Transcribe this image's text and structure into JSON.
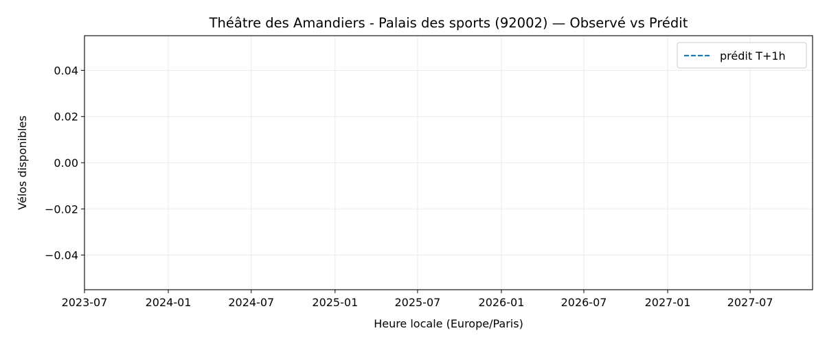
{
  "chart_data": {
    "type": "line",
    "title": "Théâtre des Amandiers - Palais des sports (92002) — Observé vs Prédit",
    "xlabel": "Heure locale (Europe/Paris)",
    "ylabel": "Vélos disponibles",
    "x_axis": {
      "type": "date",
      "range": [
        "2023-07-01",
        "2027-11-15"
      ],
      "ticks": [
        "2023-07",
        "2024-01",
        "2024-07",
        "2025-01",
        "2025-07",
        "2026-01",
        "2026-07",
        "2027-01",
        "2027-07"
      ]
    },
    "y_axis": {
      "range": [
        -0.055,
        0.055
      ],
      "ticks": [
        0.04,
        0.02,
        0.0,
        -0.02,
        -0.04
      ],
      "tick_labels": [
        "0.04",
        "0.02",
        "0.00",
        "−0.02",
        "−0.04"
      ]
    },
    "grid": true,
    "legend": {
      "placement": "top-right"
    },
    "series": [
      {
        "name": "prédit T+1h",
        "style": "dashed",
        "color": "#1f77b4",
        "x": [],
        "y": []
      }
    ]
  }
}
